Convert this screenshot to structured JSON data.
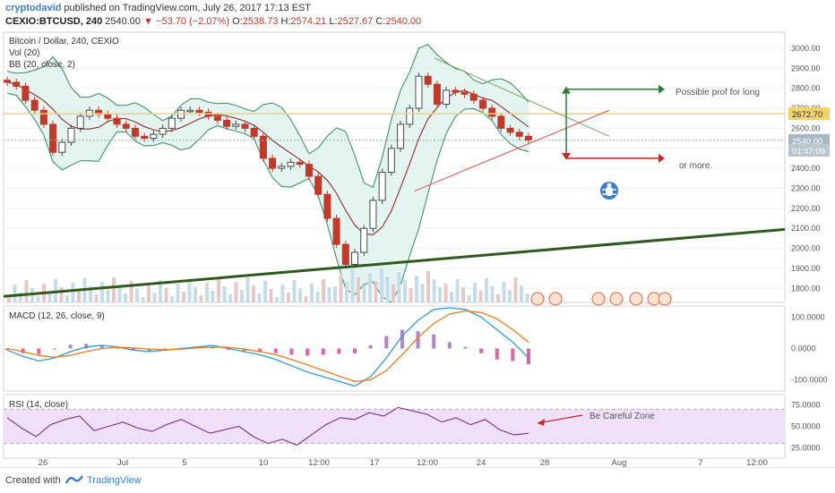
{
  "header": {
    "author": "cryptodavid",
    "published": "published on TradingView.com, July 26, 2017 17:13 EST",
    "symbol": "CEXIO:BTCUSD, 240",
    "last": "2540.00",
    "change": "−53.70 (−2.07%)",
    "ohlc": {
      "o_label": "O:",
      "o": "2538.73",
      "h_label": "H:",
      "h": "2574.21",
      "l_label": "L:",
      "l": "2527.67",
      "c_label": "C:",
      "c": "2540.00"
    }
  },
  "legend": {
    "title": "Bitcoin / Dollar, 240, CEXIO",
    "vol": "Vol (20)",
    "bb": "BB (20, close, 2)"
  },
  "footer": {
    "created": "Created with",
    "brand": "TradingView"
  },
  "colors": {
    "up": "#4a4a4a",
    "down": "#c0392b",
    "bb_fill": "#d9efe9",
    "bb_band": "#2e8b57",
    "bb_basis": "#8b1a1a",
    "support": "#2f5a1e",
    "resistance": "#f0d36b",
    "macd": "#3498db",
    "signal": "#e67e22",
    "hist": "#d63384",
    "rsi": "#7b2d8e",
    "rsi_zone": "#efe0f7"
  },
  "chart_data": [
    {
      "panel": "price",
      "type": "candlestick",
      "title": "Bitcoin / Dollar, 240, CEXIO",
      "ylim": [
        1730,
        3080
      ],
      "yticks": [
        "3000.00",
        "2900.00",
        "2800.00",
        "2700.00",
        "2600.00",
        "2500.00",
        "2400.00",
        "2300.00",
        "2200.00",
        "2100.00",
        "2000.00",
        "1900.00",
        "1800.00"
      ],
      "xticks": [
        "26",
        "Jul",
        "5",
        "10",
        "12:00",
        "17",
        "12:00",
        "24",
        "28",
        "Aug",
        "7",
        "12:00"
      ],
      "price_labels": [
        {
          "text": "2672.70",
          "value": 2672.7,
          "color": "#f0d36b"
        },
        {
          "text": "2540.00",
          "value": 2540.0,
          "color": "#8a9ca8"
        },
        {
          "text": "01:47:09",
          "value": 2490.0,
          "color": "#8a9ca8"
        }
      ],
      "close_series": [
        2830,
        2810,
        2740,
        2690,
        2620,
        2480,
        2530,
        2600,
        2660,
        2690,
        2670,
        2650,
        2620,
        2600,
        2560,
        2550,
        2570,
        2600,
        2650,
        2690,
        2690,
        2680,
        2660,
        2640,
        2610,
        2620,
        2600,
        2560,
        2450,
        2400,
        2410,
        2430,
        2420,
        2360,
        2270,
        2150,
        2020,
        1920,
        1980,
        2100,
        2240,
        2380,
        2500,
        2620,
        2700,
        2860,
        2820,
        2720,
        2790,
        2780,
        2770,
        2740,
        2700,
        2660,
        2600,
        2580,
        2560,
        2540
      ],
      "annotations": [
        {
          "type": "text",
          "text": "Possible prof for long"
        },
        {
          "type": "text",
          "text": "or more."
        }
      ],
      "resistance_level": 2672.7,
      "trendline_support": [
        {
          "x": 0,
          "y": 1760
        },
        {
          "x": 1,
          "y": 2095
        }
      ]
    },
    {
      "panel": "macd",
      "type": "line",
      "title": "MACD (12, 26, close, 9)",
      "ylim": [
        -130,
        130
      ],
      "yticks": [
        "100.0000",
        "0.0000",
        "-100.0000"
      ],
      "series": [
        {
          "name": "MACD",
          "values": [
            -5,
            -25,
            -40,
            -30,
            -10,
            5,
            10,
            5,
            -5,
            -10,
            -5,
            0,
            5,
            10,
            0,
            -10,
            -20,
            -35,
            -55,
            -75,
            -90,
            -105,
            -120,
            -90,
            -30,
            40,
            90,
            125,
            130,
            125,
            100,
            60,
            20,
            -30
          ]
        },
        {
          "name": "Signal",
          "values": [
            0,
            -10,
            -22,
            -28,
            -22,
            -10,
            0,
            4,
            2,
            -2,
            -4,
            -2,
            2,
            5,
            4,
            -2,
            -10,
            -20,
            -35,
            -52,
            -70,
            -88,
            -105,
            -100,
            -70,
            -20,
            35,
            80,
            110,
            120,
            115,
            95,
            60,
            20
          ]
        }
      ]
    },
    {
      "panel": "rsi",
      "type": "line",
      "title": "RSI (14, close)",
      "ylim": [
        15,
        85
      ],
      "yticks": [
        "75.0000",
        "50.0000",
        "25.0000"
      ],
      "series": [
        {
          "name": "RSI",
          "values": [
            60,
            48,
            38,
            52,
            58,
            62,
            45,
            50,
            55,
            48,
            44,
            52,
            58,
            50,
            42,
            46,
            50,
            38,
            30,
            35,
            28,
            40,
            52,
            60,
            58,
            66,
            62,
            72,
            68,
            64,
            55,
            60,
            52,
            58,
            46,
            40,
            42
          ]
        }
      ],
      "annotation": "Be Careful Zone"
    }
  ]
}
